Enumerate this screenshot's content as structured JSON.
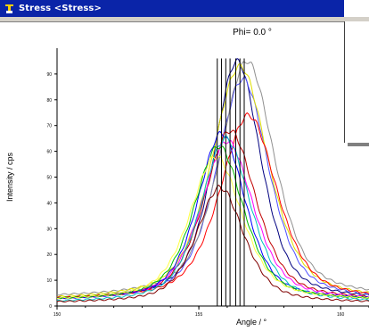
{
  "window": {
    "title": "Stress <Stress>",
    "icon": "stress-app-icon"
  },
  "chart_data": {
    "type": "line",
    "title": "Phi= 0.0   °",
    "xlabel": "Angle / °",
    "ylabel": "Intensity / cps",
    "xlim": [
      150,
      161
    ],
    "ylim": [
      0,
      100
    ],
    "xticks": [
      "150",
      "155",
      "160"
    ],
    "yticks": [
      "0",
      "10",
      "20",
      "30",
      "40",
      "50",
      "60",
      "70",
      "80",
      "90"
    ],
    "grid": false,
    "series": [
      {
        "color": "#000080",
        "peak_x": 156.35,
        "peak_y": 95,
        "width": 1.0,
        "base": 2
      },
      {
        "color": "#5050ff",
        "peak_x": 156.55,
        "peak_y": 88,
        "width": 1.1,
        "base": 2
      },
      {
        "color": "#909090",
        "peak_x": 156.7,
        "peak_y": 95,
        "width": 1.15,
        "base": 3
      },
      {
        "color": "#e0e000",
        "peak_x": 156.45,
        "peak_y": 93,
        "width": 1.2,
        "base": 2
      },
      {
        "color": "#ff0000",
        "peak_x": 156.75,
        "peak_y": 74,
        "width": 1.2,
        "base": 2
      },
      {
        "color": "#c00000",
        "peak_x": 156.1,
        "peak_y": 68,
        "width": 1.1,
        "base": 2
      },
      {
        "color": "#ff00ff",
        "peak_x": 156.0,
        "peak_y": 64,
        "width": 1.1,
        "base": 2
      },
      {
        "color": "#0000ff",
        "peak_x": 155.8,
        "peak_y": 67,
        "width": 1.0,
        "base": 2
      },
      {
        "color": "#00c0c0",
        "peak_x": 155.95,
        "peak_y": 65,
        "width": 1.05,
        "base": 1
      },
      {
        "color": "#00c000",
        "peak_x": 155.7,
        "peak_y": 62,
        "width": 1.05,
        "base": 2
      },
      {
        "color": "#ffff40",
        "peak_x": 155.6,
        "peak_y": 58,
        "width": 1.1,
        "base": 2
      },
      {
        "color": "#800000",
        "peak_x": 155.75,
        "peak_y": 46,
        "width": 1.0,
        "base": 1
      }
    ],
    "peak_markers": [
      155.65,
      155.8,
      155.95,
      156.1,
      156.3,
      156.45,
      156.6
    ]
  }
}
